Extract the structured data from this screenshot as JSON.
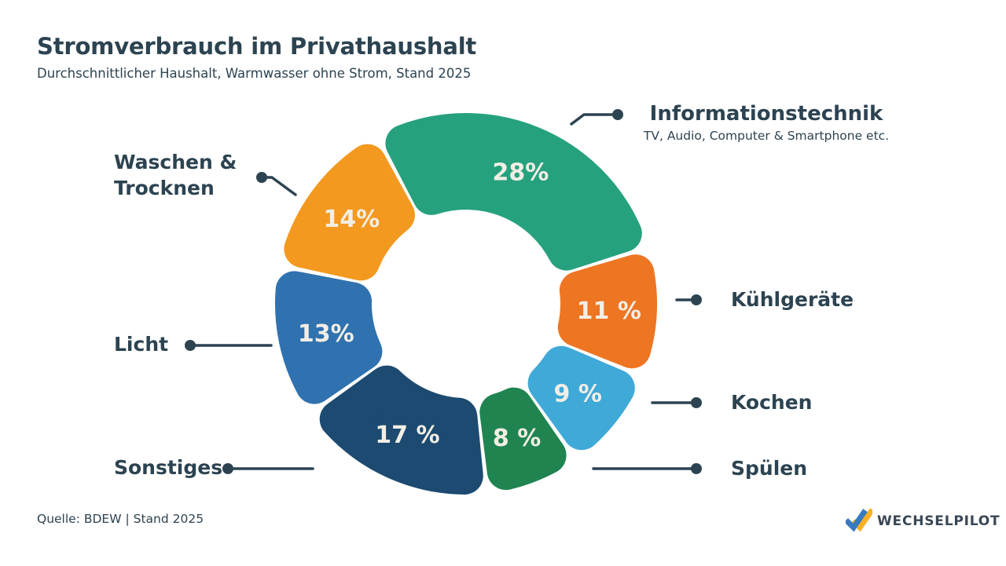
{
  "header": {
    "title": "Stromverbrauch im Privathaushalt",
    "subtitle": "Durchschnittlicher Haushalt, Warmwasser ohne Strom, Stand 2025"
  },
  "footer": {
    "source": "Quelle: BDEW | Stand 2025",
    "brand": "WECHSELPILOT"
  },
  "colors": {
    "text": "#2c4351",
    "percent_text": "#f2eee5",
    "leader_line": "#2c4351",
    "logo_blue": "#3779c2",
    "logo_yellow": "#f9b021"
  },
  "chart_data": {
    "type": "pie",
    "variant": "donut",
    "title": "Stromverbrauch im Privathaushalt",
    "unit": "%",
    "start_angle_deg": -28,
    "direction": "clockwise",
    "legend_position": "callouts",
    "segments": [
      {
        "id": "informationstechnik",
        "label": "Informationstechnik",
        "sublabel": "TV, Audio, Computer & Smartphone etc.",
        "value": 28,
        "display": "28%",
        "color": "#26a17e"
      },
      {
        "id": "kuehlgeraete",
        "label": "Kühlgeräte",
        "value": 11,
        "display": "11 %",
        "color": "#ee7522"
      },
      {
        "id": "kochen",
        "label": "Kochen",
        "value": 9,
        "display": "9 %",
        "color": "#3fa9d8"
      },
      {
        "id": "spuelen",
        "label": "Spülen",
        "value": 8,
        "display": "8 %",
        "color": "#1f8450"
      },
      {
        "id": "sonstiges",
        "label": "Sonstiges",
        "value": 17,
        "display": "17 %",
        "color": "#1c4a70"
      },
      {
        "id": "licht",
        "label": "Licht",
        "value": 13,
        "display": "13%",
        "color": "#3072af"
      },
      {
        "id": "waschen-trocknen",
        "label": "Waschen & Trocknen",
        "value": 14,
        "display": "14%",
        "color": "#f4991f"
      }
    ]
  }
}
